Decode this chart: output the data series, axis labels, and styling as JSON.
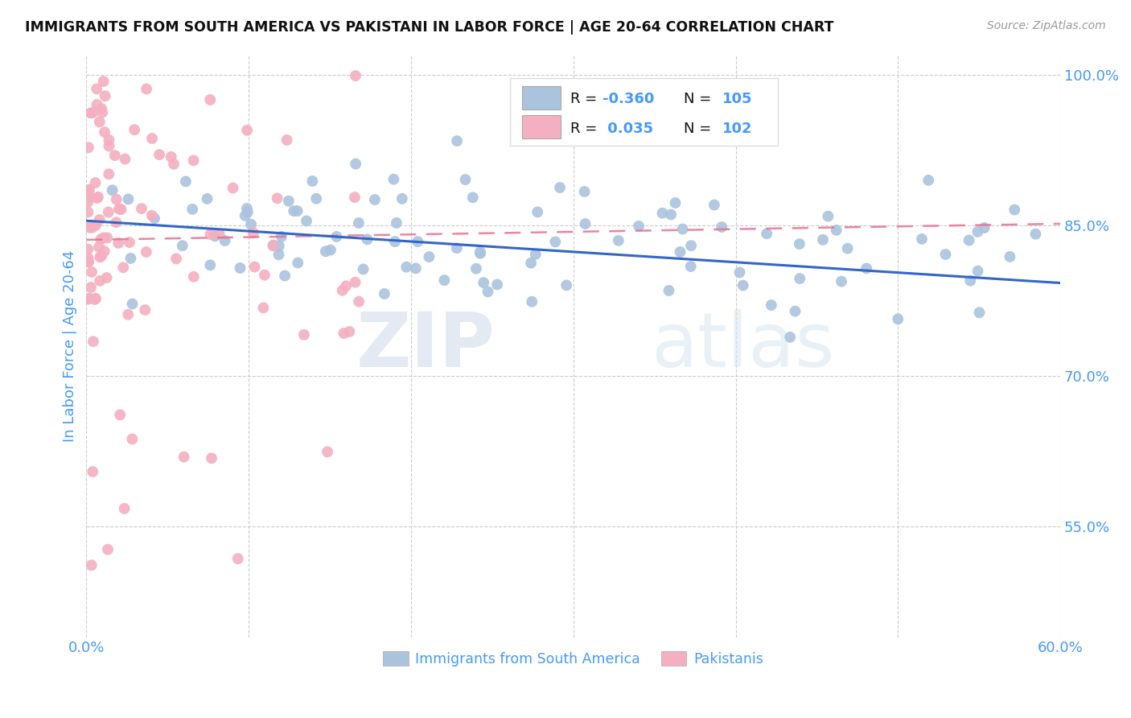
{
  "title": "IMMIGRANTS FROM SOUTH AMERICA VS PAKISTANI IN LABOR FORCE | AGE 20-64 CORRELATION CHART",
  "source": "Source: ZipAtlas.com",
  "ylabel": "In Labor Force | Age 20-64",
  "xlim": [
    0.0,
    0.6
  ],
  "ylim": [
    0.44,
    1.02
  ],
  "xticks": [
    0.0,
    0.1,
    0.2,
    0.3,
    0.4,
    0.5,
    0.6
  ],
  "xticklabels": [
    "0.0%",
    "",
    "",
    "",
    "",
    "",
    "60.0%"
  ],
  "ytick_positions": [
    0.55,
    0.7,
    0.85,
    1.0
  ],
  "yticklabels": [
    "55.0%",
    "70.0%",
    "85.0%",
    "100.0%"
  ],
  "blue_R": -0.36,
  "blue_N": 105,
  "pink_R": 0.035,
  "pink_N": 102,
  "blue_color": "#aac4de",
  "pink_color": "#f4afc0",
  "blue_line_color": "#3366cc",
  "pink_line_color": "#e87090",
  "title_color": "#222222",
  "axis_color": "#4499ff",
  "legend_label_blue": "Immigrants from South America",
  "legend_label_pink": "Pakistanis",
  "watermark_zip": "ZIP",
  "watermark_atlas": "atlas",
  "blue_line_y0": 0.855,
  "blue_line_y1": 0.793,
  "pink_line_y0": 0.836,
  "pink_line_y1": 0.852
}
